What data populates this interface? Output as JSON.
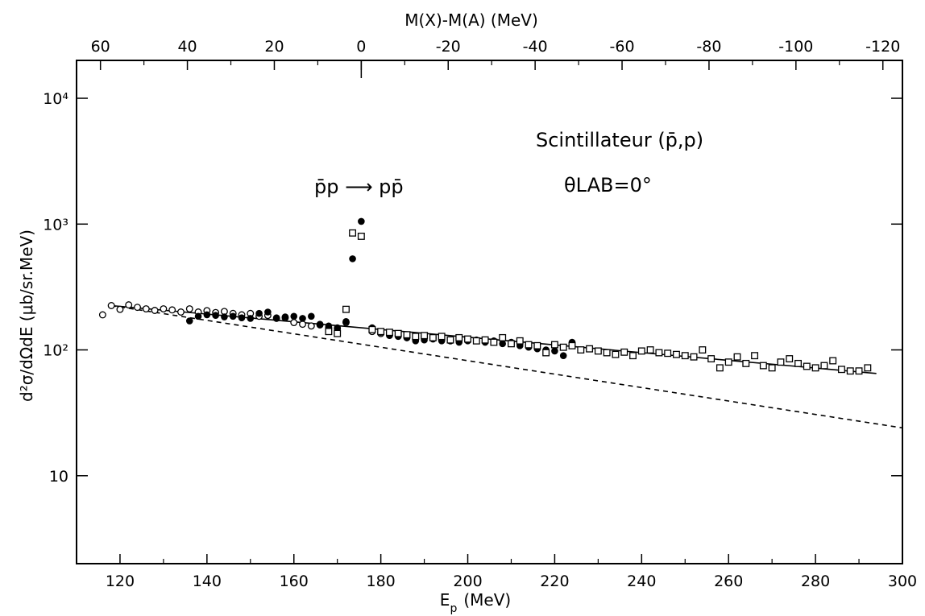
{
  "chart_data": {
    "type": "scatter",
    "title": "",
    "xlabel": "E",
    "xlabel_sub": "p",
    "xlabel_unit": "(MeV)",
    "ylabel": "d²σ/dΩdE  (μb/sr.MeV)",
    "top_axis_label": "M(X)-M(A)  (MeV)",
    "xlim": [
      110,
      300
    ],
    "ylim": [
      2,
      20000
    ],
    "yscale": "log",
    "x_ticks": [
      120,
      140,
      160,
      180,
      200,
      220,
      240,
      260,
      280,
      300
    ],
    "x_tick_labels": [
      "120",
      "140",
      "160",
      "180",
      "200",
      "220",
      "240",
      "260",
      "280",
      "300"
    ],
    "y_ticks": [
      10,
      100,
      1000,
      10000
    ],
    "y_tick_labels": [
      "10",
      "10²",
      "10³",
      "10⁴"
    ],
    "top_ticks": [
      60,
      40,
      20,
      0,
      -20,
      -40,
      -60,
      -80,
      -100,
      -120
    ],
    "top_tick_labels": [
      "60",
      "40",
      "20",
      "0",
      "-20",
      "-40",
      "-60",
      "-80",
      "-100",
      "-120"
    ],
    "annotations": {
      "reaction": "p̄p ⟶ pp̄",
      "label": "Scintillateur (p̄,p)",
      "angle": "θLAB=0°"
    },
    "series": [
      {
        "marker": "open-circle",
        "points": [
          [
            116,
            190
          ],
          [
            118,
            225
          ],
          [
            120,
            210
          ],
          [
            122,
            228
          ],
          [
            124,
            218
          ],
          [
            126,
            212
          ],
          [
            128,
            206
          ],
          [
            130,
            212
          ],
          [
            132,
            208
          ],
          [
            134,
            200
          ],
          [
            136,
            212
          ],
          [
            138,
            200
          ],
          [
            140,
            205
          ],
          [
            142,
            198
          ],
          [
            144,
            202
          ],
          [
            146,
            195
          ],
          [
            148,
            190
          ],
          [
            150,
            195
          ],
          [
            152,
            185
          ],
          [
            154,
            188
          ],
          [
            156,
            178
          ],
          [
            158,
            180
          ],
          [
            160,
            165
          ],
          [
            162,
            160
          ],
          [
            164,
            155
          ],
          [
            166,
            158
          ],
          [
            168,
            150
          ],
          [
            170,
            148
          ],
          [
            172,
            165
          ],
          [
            178,
            140
          ],
          [
            180,
            135
          ],
          [
            182,
            132
          ],
          [
            184,
            130
          ],
          [
            186,
            125
          ],
          [
            188,
            122
          ],
          [
            190,
            128
          ],
          [
            192,
            125
          ],
          [
            194,
            120
          ],
          [
            196,
            118
          ]
        ]
      },
      {
        "marker": "filled-circle",
        "points": [
          [
            136,
            170
          ],
          [
            138,
            185
          ],
          [
            140,
            190
          ],
          [
            142,
            188
          ],
          [
            144,
            183
          ],
          [
            146,
            185
          ],
          [
            148,
            180
          ],
          [
            150,
            178
          ],
          [
            152,
            195
          ],
          [
            154,
            200
          ],
          [
            156,
            180
          ],
          [
            158,
            183
          ],
          [
            160,
            185
          ],
          [
            162,
            178
          ],
          [
            164,
            185
          ],
          [
            166,
            160
          ],
          [
            168,
            155
          ],
          [
            170,
            150
          ],
          [
            172,
            168
          ],
          [
            173.5,
            530
          ],
          [
            175.5,
            1050
          ],
          [
            178,
            150
          ],
          [
            180,
            138
          ],
          [
            182,
            130
          ],
          [
            184,
            128
          ],
          [
            186,
            125
          ],
          [
            188,
            118
          ],
          [
            190,
            120
          ],
          [
            192,
            122
          ],
          [
            194,
            118
          ],
          [
            196,
            120
          ],
          [
            198,
            115
          ],
          [
            200,
            118
          ],
          [
            202,
            120
          ],
          [
            204,
            115
          ],
          [
            206,
            118
          ],
          [
            208,
            112
          ],
          [
            210,
            115
          ],
          [
            212,
            108
          ],
          [
            214,
            105
          ],
          [
            216,
            102
          ],
          [
            218,
            100
          ],
          [
            220,
            98
          ],
          [
            222,
            90
          ],
          [
            224,
            115
          ]
        ]
      },
      {
        "marker": "open-square",
        "points": [
          [
            168,
            140
          ],
          [
            170,
            135
          ],
          [
            172,
            210
          ],
          [
            173.5,
            850
          ],
          [
            175.5,
            800
          ],
          [
            178,
            145
          ],
          [
            180,
            140
          ],
          [
            182,
            138
          ],
          [
            184,
            135
          ],
          [
            186,
            132
          ],
          [
            188,
            128
          ],
          [
            190,
            130
          ],
          [
            192,
            125
          ],
          [
            194,
            128
          ],
          [
            196,
            120
          ],
          [
            198,
            125
          ],
          [
            200,
            122
          ],
          [
            202,
            118
          ],
          [
            204,
            120
          ],
          [
            206,
            115
          ],
          [
            208,
            125
          ],
          [
            210,
            112
          ],
          [
            212,
            118
          ],
          [
            214,
            110
          ],
          [
            216,
            108
          ],
          [
            218,
            95
          ],
          [
            220,
            110
          ],
          [
            222,
            105
          ],
          [
            224,
            108
          ],
          [
            226,
            100
          ],
          [
            228,
            102
          ],
          [
            230,
            98
          ],
          [
            232,
            95
          ],
          [
            234,
            92
          ],
          [
            236,
            96
          ],
          [
            238,
            90
          ],
          [
            240,
            98
          ],
          [
            242,
            100
          ],
          [
            244,
            95
          ],
          [
            246,
            94
          ],
          [
            248,
            92
          ],
          [
            250,
            90
          ],
          [
            252,
            88
          ],
          [
            254,
            100
          ],
          [
            256,
            85
          ],
          [
            258,
            72
          ],
          [
            260,
            80
          ],
          [
            262,
            88
          ],
          [
            264,
            78
          ],
          [
            266,
            90
          ],
          [
            268,
            75
          ],
          [
            270,
            72
          ],
          [
            272,
            80
          ],
          [
            274,
            85
          ],
          [
            276,
            78
          ],
          [
            278,
            74
          ],
          [
            280,
            72
          ],
          [
            282,
            75
          ],
          [
            284,
            82
          ],
          [
            286,
            70
          ],
          [
            288,
            68
          ],
          [
            290,
            68
          ],
          [
            292,
            72
          ]
        ]
      }
    ],
    "lines": [
      {
        "style": "solid",
        "x": [
          118,
          294
        ],
        "y": [
          225,
          65
        ]
      },
      {
        "style": "dashed",
        "x": [
          118,
          300
        ],
        "y": [
          225,
          24
        ]
      }
    ]
  }
}
